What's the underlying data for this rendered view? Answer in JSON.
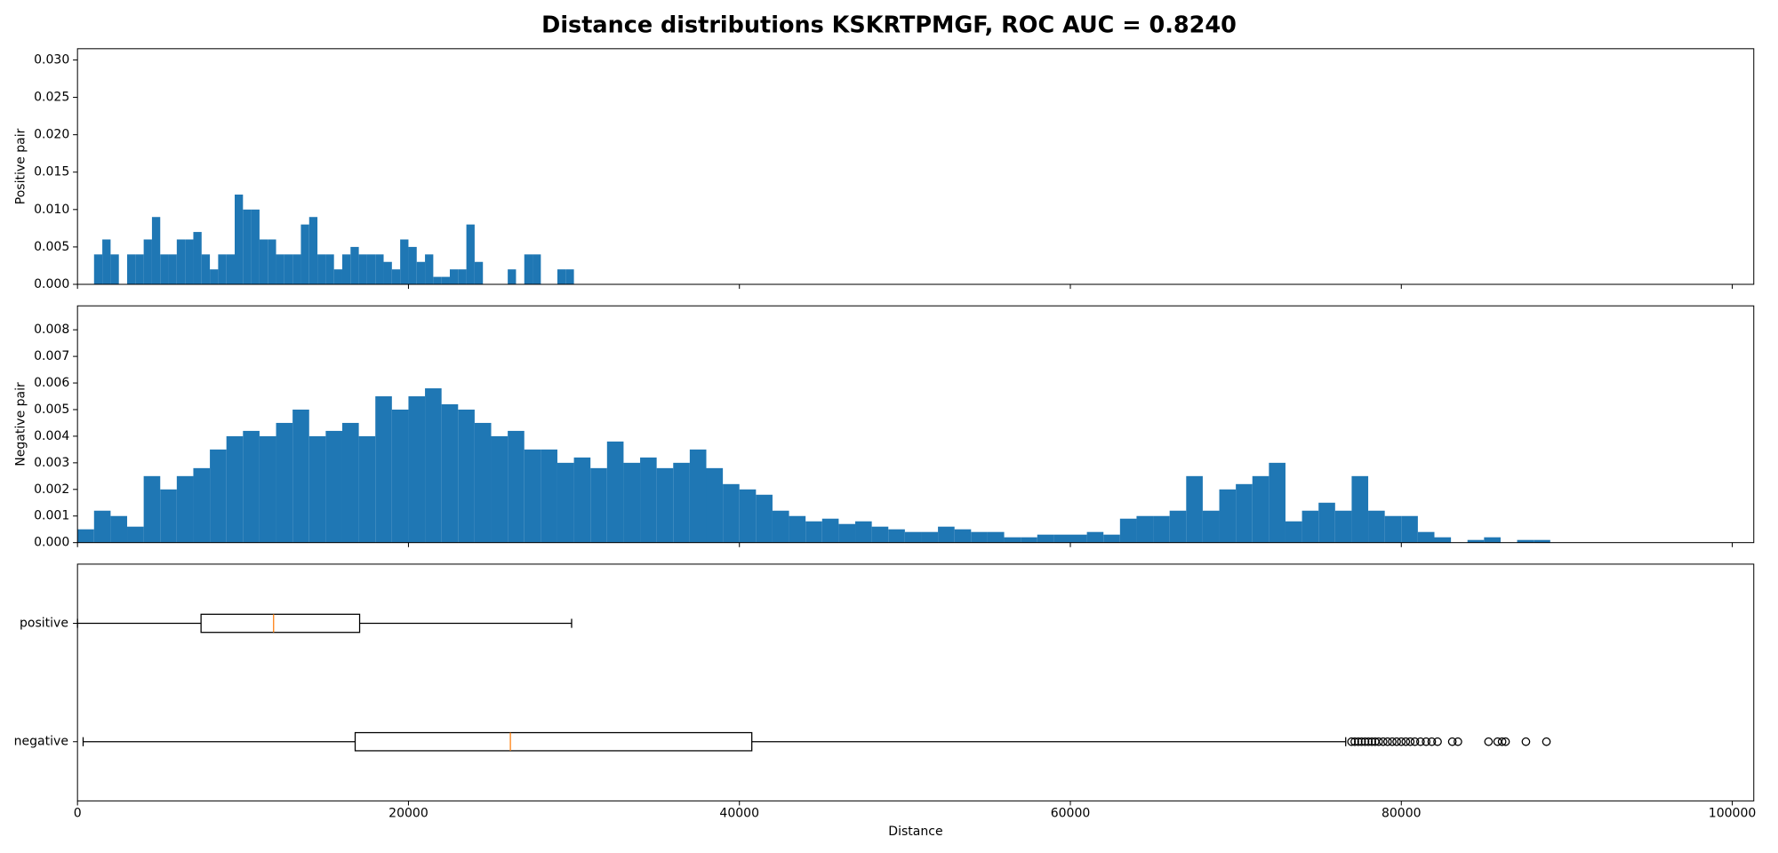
{
  "chart_data": [
    {
      "type": "histogram",
      "ylabel": "Positive pair",
      "color": "#1f77b4",
      "title": "Distance distributions KSKRTPMGF, ROC AUC = 0.8240",
      "bins": [
        1000,
        1500,
        2000,
        2500,
        3000,
        3500,
        4000,
        4500,
        5000,
        5500,
        6000,
        6500,
        7000,
        7500,
        8000,
        8500,
        9000,
        9500,
        10000,
        10500,
        11000,
        11500,
        12000,
        12500,
        13000,
        13500,
        14000,
        14500,
        15000,
        15500,
        16000,
        16500,
        17000,
        17500,
        18000,
        18500,
        19000,
        19500,
        20000,
        20500,
        21000,
        21500,
        22000,
        22500,
        23000,
        23500,
        24000,
        24500,
        25000,
        25500,
        26000,
        26500,
        27000,
        27500,
        28000,
        28500,
        29000,
        29500,
        30000
      ],
      "values": [
        0.004,
        0.006,
        0.004,
        0,
        0.004,
        0.004,
        0.006,
        0.009,
        0.004,
        0.004,
        0.006,
        0.006,
        0.007,
        0.004,
        0.002,
        0.004,
        0.004,
        0.012,
        0.01,
        0.01,
        0.006,
        0.006,
        0.004,
        0.004,
        0.004,
        0.008,
        0.009,
        0.004,
        0.004,
        0.002,
        0.004,
        0.005,
        0.004,
        0.004,
        0.004,
        0.003,
        0.002,
        0.006,
        0.005,
        0.003,
        0.004,
        0.001,
        0.001,
        0.002,
        0.002,
        0.008,
        0.003,
        0,
        0,
        0,
        0.002,
        0,
        0.004,
        0.004,
        0,
        0,
        0.002,
        0.002
      ],
      "xlim": [
        0,
        101300
      ],
      "xticks": [
        0,
        20000,
        40000,
        60000,
        80000,
        100000
      ],
      "ylim": [
        0,
        0.0315
      ],
      "yticks": [
        {
          "value": 0,
          "label": "0.000"
        },
        {
          "value": 0.005,
          "label": "0.005"
        },
        {
          "value": 0.01,
          "label": "0.010"
        },
        {
          "value": 0.015,
          "label": "0.015"
        },
        {
          "value": 0.02,
          "label": "0.020"
        },
        {
          "value": 0.025,
          "label": "0.025"
        },
        {
          "value": 0.03,
          "label": "0.030"
        }
      ]
    },
    {
      "type": "histogram",
      "ylabel": "Negative pair",
      "color": "#1f77b4",
      "bins": [
        0,
        1000,
        2000,
        3000,
        4000,
        5000,
        6000,
        7000,
        8000,
        9000,
        10000,
        11000,
        12000,
        13000,
        14000,
        15000,
        16000,
        17000,
        18000,
        19000,
        20000,
        21000,
        22000,
        23000,
        24000,
        25000,
        26000,
        27000,
        28000,
        29000,
        30000,
        31000,
        32000,
        33000,
        34000,
        35000,
        36000,
        37000,
        38000,
        39000,
        40000,
        41000,
        42000,
        43000,
        44000,
        45000,
        46000,
        47000,
        48000,
        49000,
        50000,
        51000,
        52000,
        53000,
        54000,
        55000,
        56000,
        57000,
        58000,
        59000,
        60000,
        61000,
        62000,
        63000,
        64000,
        65000,
        66000,
        67000,
        68000,
        69000,
        70000,
        71000,
        72000,
        73000,
        74000,
        75000,
        76000,
        77000,
        78000,
        79000,
        80000,
        81000,
        82000,
        83000,
        84000,
        85000,
        86000,
        87000,
        88000,
        89000
      ],
      "values": [
        0.0005,
        0.0012,
        0.001,
        0.0006,
        0.0025,
        0.002,
        0.0025,
        0.0028,
        0.0035,
        0.004,
        0.0042,
        0.004,
        0.0045,
        0.005,
        0.004,
        0.0042,
        0.0045,
        0.004,
        0.0055,
        0.005,
        0.0055,
        0.0058,
        0.0052,
        0.005,
        0.0045,
        0.004,
        0.0042,
        0.0035,
        0.0035,
        0.003,
        0.0032,
        0.0028,
        0.0038,
        0.003,
        0.0032,
        0.0028,
        0.003,
        0.0035,
        0.0028,
        0.0022,
        0.002,
        0.0018,
        0.0012,
        0.001,
        0.0008,
        0.0009,
        0.0007,
        0.0008,
        0.0006,
        0.0005,
        0.0004,
        0.0004,
        0.0006,
        0.0005,
        0.0004,
        0.0004,
        0.0002,
        0.0002,
        0.0003,
        0.0003,
        0.0003,
        0.0004,
        0.0003,
        0.0009,
        0.001,
        0.001,
        0.0012,
        0.0025,
        0.0012,
        0.002,
        0.0022,
        0.0025,
        0.003,
        0.0008,
        0.0012,
        0.0015,
        0.0012,
        0.0025,
        0.0012,
        0.001,
        0.001,
        0.0004,
        0.0002,
        0,
        0.0001,
        0.0002,
        0,
        0.0001,
        0.0001
      ],
      "xlim": [
        0,
        101300
      ],
      "xticks": [
        0,
        20000,
        40000,
        60000,
        80000,
        100000
      ],
      "ylim": [
        0,
        0.0089
      ],
      "yticks": [
        {
          "value": 0,
          "label": "0.000"
        },
        {
          "value": 0.001,
          "label": "0.001"
        },
        {
          "value": 0.002,
          "label": "0.002"
        },
        {
          "value": 0.003,
          "label": "0.003"
        },
        {
          "value": 0.004,
          "label": "0.004"
        },
        {
          "value": 0.005,
          "label": "0.005"
        },
        {
          "value": 0.006,
          "label": "0.006"
        },
        {
          "value": 0.007,
          "label": "0.007"
        },
        {
          "value": 0.008,
          "label": "0.008"
        }
      ]
    },
    {
      "type": "box",
      "xlabel": "Distance",
      "box_color": "#000000",
      "median_color": "#ff7f0e",
      "categories": [
        "positive",
        "negative"
      ],
      "boxes": [
        {
          "whislo": 0,
          "q1": 7466,
          "med": 11850,
          "q3": 17050,
          "whishi": 29860,
          "fliers": []
        },
        {
          "whislo": 340,
          "q1": 16780,
          "med": 26160,
          "q3": 40750,
          "whishi": 76640,
          "fliers": [
            76990,
            77190,
            77400,
            77600,
            77810,
            78010,
            78220,
            78420,
            78630,
            78900,
            79170,
            79450,
            79720,
            80000,
            80270,
            80540,
            80820,
            81160,
            81500,
            81840,
            82190,
            83080,
            83420,
            85270,
            85820,
            86090,
            86300,
            87530,
            88770
          ]
        }
      ],
      "xlim": [
        0,
        101300
      ],
      "xticks": [
        0,
        20000,
        40000,
        60000,
        80000,
        100000
      ]
    }
  ]
}
